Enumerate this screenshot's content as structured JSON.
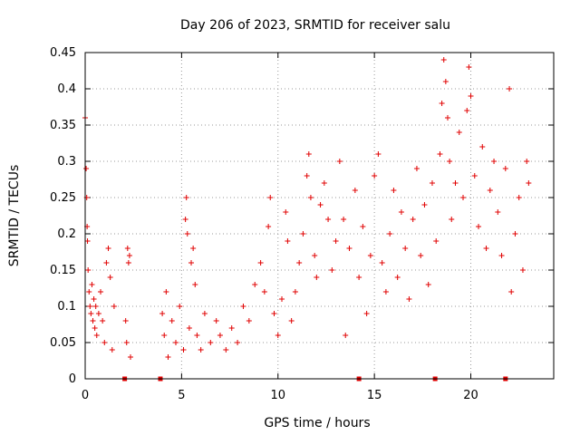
{
  "chart_data": {
    "type": "scatter",
    "title": "Day 206 of 2023, SRMTID for receiver salu",
    "xlabel": "GPS time / hours",
    "ylabel": "SRMTID / TECUs",
    "xlim": [
      0,
      24.3
    ],
    "ylim": [
      0,
      0.45
    ],
    "xticks": [
      0,
      5,
      10,
      15,
      20
    ],
    "yticks": [
      0,
      0.05,
      0.1,
      0.15,
      0.2,
      0.25,
      0.3,
      0.35,
      0.4,
      0.45
    ],
    "xtick_labels": [
      "0",
      "5",
      "10",
      "15",
      "20"
    ],
    "ytick_labels": [
      "0",
      "0.05",
      "0.1",
      "0.15",
      "0.2",
      "0.25",
      "0.3",
      "0.35",
      "0.4",
      "0.45"
    ],
    "grid": true,
    "marker": "+",
    "color": "#ff0000",
    "marker_color": "#e00000",
    "series": [
      {
        "name": "SRMTID",
        "points": [
          [
            0.0,
            0.36
          ],
          [
            0.05,
            0.29
          ],
          [
            0.08,
            0.25
          ],
          [
            0.1,
            0.21
          ],
          [
            0.12,
            0.19
          ],
          [
            0.15,
            0.15
          ],
          [
            0.2,
            0.12
          ],
          [
            0.25,
            0.1
          ],
          [
            0.3,
            0.09
          ],
          [
            0.35,
            0.13
          ],
          [
            0.4,
            0.08
          ],
          [
            0.45,
            0.11
          ],
          [
            0.5,
            0.07
          ],
          [
            0.55,
            0.1
          ],
          [
            0.6,
            0.06
          ],
          [
            0.7,
            0.09
          ],
          [
            0.8,
            0.12
          ],
          [
            0.9,
            0.08
          ],
          [
            1.0,
            0.05
          ],
          [
            1.1,
            0.16
          ],
          [
            1.2,
            0.18
          ],
          [
            1.3,
            0.14
          ],
          [
            1.4,
            0.04
          ],
          [
            1.5,
            0.1
          ],
          [
            2.1,
            0.08
          ],
          [
            2.15,
            0.05
          ],
          [
            2.2,
            0.18
          ],
          [
            2.25,
            0.16
          ],
          [
            2.3,
            0.17
          ],
          [
            2.35,
            0.03
          ],
          [
            4.0,
            0.09
          ],
          [
            4.1,
            0.06
          ],
          [
            4.2,
            0.12
          ],
          [
            4.3,
            0.03
          ],
          [
            4.5,
            0.08
          ],
          [
            4.7,
            0.05
          ],
          [
            4.9,
            0.1
          ],
          [
            5.1,
            0.04
          ],
          [
            5.2,
            0.22
          ],
          [
            5.25,
            0.25
          ],
          [
            5.3,
            0.2
          ],
          [
            5.4,
            0.07
          ],
          [
            5.5,
            0.16
          ],
          [
            5.6,
            0.18
          ],
          [
            5.7,
            0.13
          ],
          [
            5.8,
            0.06
          ],
          [
            6.0,
            0.04
          ],
          [
            6.2,
            0.09
          ],
          [
            6.5,
            0.05
          ],
          [
            6.8,
            0.08
          ],
          [
            7.0,
            0.06
          ],
          [
            7.3,
            0.04
          ],
          [
            7.6,
            0.07
          ],
          [
            7.9,
            0.05
          ],
          [
            8.2,
            0.1
          ],
          [
            8.5,
            0.08
          ],
          [
            8.8,
            0.13
          ],
          [
            9.1,
            0.16
          ],
          [
            9.3,
            0.12
          ],
          [
            9.5,
            0.21
          ],
          [
            9.6,
            0.25
          ],
          [
            9.8,
            0.09
          ],
          [
            10.0,
            0.06
          ],
          [
            10.2,
            0.11
          ],
          [
            10.4,
            0.23
          ],
          [
            10.5,
            0.19
          ],
          [
            10.7,
            0.08
          ],
          [
            10.9,
            0.12
          ],
          [
            11.1,
            0.16
          ],
          [
            11.3,
            0.2
          ],
          [
            11.5,
            0.28
          ],
          [
            11.6,
            0.31
          ],
          [
            11.7,
            0.25
          ],
          [
            11.9,
            0.17
          ],
          [
            12.0,
            0.14
          ],
          [
            12.2,
            0.24
          ],
          [
            12.4,
            0.27
          ],
          [
            12.6,
            0.22
          ],
          [
            12.8,
            0.15
          ],
          [
            13.0,
            0.19
          ],
          [
            13.2,
            0.3
          ],
          [
            13.4,
            0.22
          ],
          [
            13.5,
            0.06
          ],
          [
            13.7,
            0.18
          ],
          [
            14.0,
            0.26
          ],
          [
            14.2,
            0.14
          ],
          [
            14.4,
            0.21
          ],
          [
            14.6,
            0.09
          ],
          [
            14.8,
            0.17
          ],
          [
            15.0,
            0.28
          ],
          [
            15.2,
            0.31
          ],
          [
            15.4,
            0.16
          ],
          [
            15.6,
            0.12
          ],
          [
            15.8,
            0.2
          ],
          [
            16.0,
            0.26
          ],
          [
            16.2,
            0.14
          ],
          [
            16.4,
            0.23
          ],
          [
            16.6,
            0.18
          ],
          [
            16.8,
            0.11
          ],
          [
            17.0,
            0.22
          ],
          [
            17.2,
            0.29
          ],
          [
            17.4,
            0.17
          ],
          [
            17.6,
            0.24
          ],
          [
            17.8,
            0.13
          ],
          [
            18.0,
            0.27
          ],
          [
            18.2,
            0.19
          ],
          [
            18.4,
            0.31
          ],
          [
            18.5,
            0.38
          ],
          [
            18.6,
            0.44
          ],
          [
            18.7,
            0.41
          ],
          [
            18.8,
            0.36
          ],
          [
            18.9,
            0.3
          ],
          [
            19.0,
            0.22
          ],
          [
            19.2,
            0.27
          ],
          [
            19.4,
            0.34
          ],
          [
            19.6,
            0.25
          ],
          [
            19.8,
            0.37
          ],
          [
            19.9,
            0.43
          ],
          [
            20.0,
            0.39
          ],
          [
            20.2,
            0.28
          ],
          [
            20.4,
            0.21
          ],
          [
            20.6,
            0.32
          ],
          [
            20.8,
            0.18
          ],
          [
            21.0,
            0.26
          ],
          [
            21.2,
            0.3
          ],
          [
            21.4,
            0.23
          ],
          [
            21.6,
            0.17
          ],
          [
            21.8,
            0.29
          ],
          [
            22.0,
            0.4
          ],
          [
            22.1,
            0.12
          ],
          [
            22.3,
            0.2
          ],
          [
            22.5,
            0.25
          ],
          [
            22.7,
            0.15
          ],
          [
            22.9,
            0.3
          ],
          [
            23.0,
            0.27
          ]
        ]
      }
    ],
    "zero_markers": [
      2.05,
      3.9,
      14.2,
      18.15,
      21.8
    ]
  }
}
